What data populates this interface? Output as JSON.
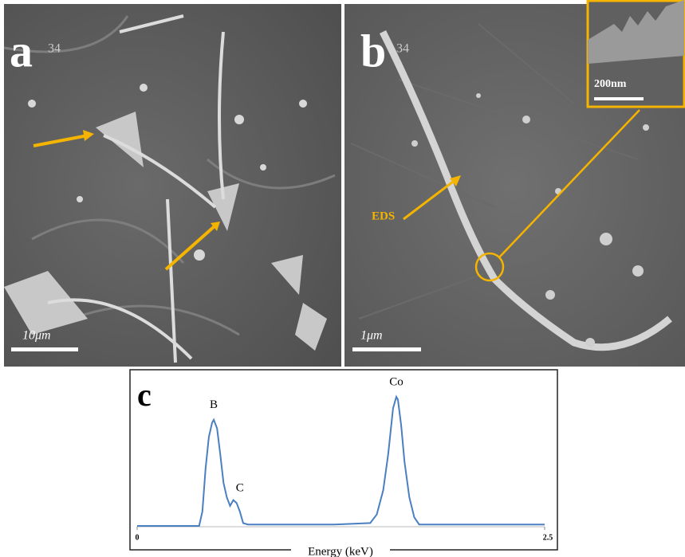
{
  "panels": [
    {
      "label": "a",
      "stamp": "34",
      "scale_bar": "10μm"
    },
    {
      "label": "b",
      "stamp": "34",
      "scale_bar": "1μm",
      "inset_scale_bar": "200nm",
      "annotation": "EDS"
    }
  ],
  "chart_data": {
    "type": "line",
    "panel_label": "c",
    "x_label": "Energy (keV)",
    "x": [
      0,
      0.38,
      0.4,
      0.42,
      0.44,
      0.46,
      0.47,
      0.49,
      0.51,
      0.53,
      0.55,
      0.57,
      0.59,
      0.61,
      0.63,
      0.65,
      0.68,
      0.92,
      1.21,
      1.43,
      1.47,
      1.51,
      1.54,
      1.57,
      1.59,
      1.6,
      1.62,
      1.64,
      1.67,
      1.7,
      1.73,
      2.09,
      2.39,
      2.5
    ],
    "values": [
      0,
      0,
      10,
      40,
      62,
      72,
      74,
      68,
      50,
      30,
      20,
      14,
      18,
      16,
      10,
      2,
      1,
      1,
      1,
      2,
      8,
      25,
      50,
      82,
      90,
      88,
      70,
      45,
      20,
      6,
      1,
      1,
      1,
      1
    ],
    "color": "#4a7fc1",
    "xlim": [
      0,
      2.5
    ],
    "xticks": [
      0,
      2.5
    ],
    "ylim": [
      0,
      100
    ],
    "annotations": [
      {
        "text": "B",
        "x": 0.47,
        "y": 74
      },
      {
        "text": "C",
        "x": 0.63,
        "y": 16
      },
      {
        "text": "Co",
        "x": 1.59,
        "y": 90
      }
    ]
  }
}
